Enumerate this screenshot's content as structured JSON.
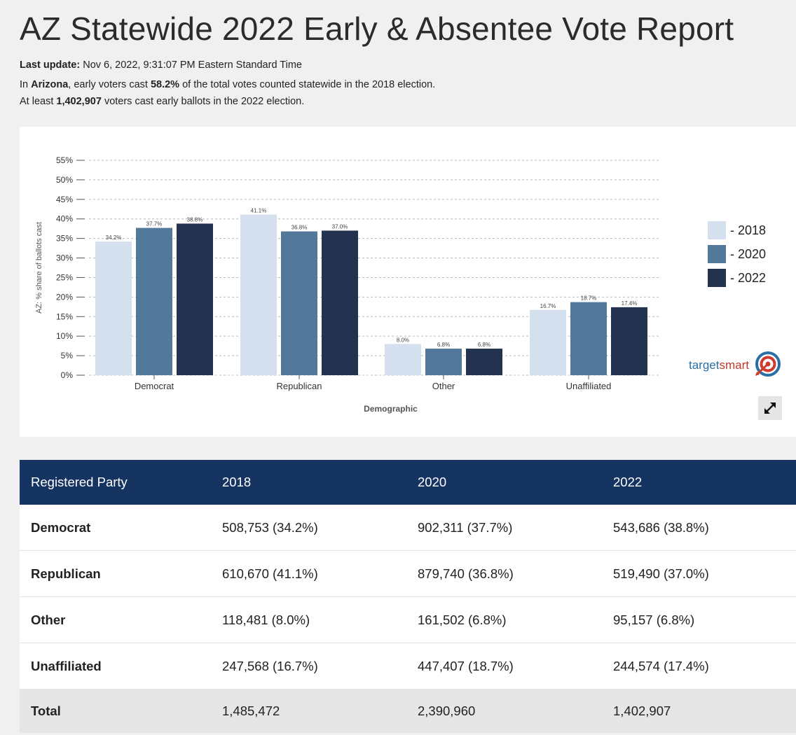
{
  "page": {
    "title": "AZ Statewide 2022 Early & Absentee Vote Report",
    "last_update_label": "Last update:",
    "last_update_value": "Nov 6, 2022, 9:31:07 PM Eastern Standard Time",
    "line2_prefix": "In",
    "line2_state": "Arizona",
    "line2_mid": ", early voters cast",
    "line2_pct": "58.2%",
    "line2_suffix": "of the total votes counted statewide in the 2018 election.",
    "line3_prefix": "At least",
    "line3_count": "1,402,907",
    "line3_suffix": "voters cast early ballots in the 2022 election."
  },
  "chart_data": {
    "type": "bar",
    "categories": [
      "Democrat",
      "Republican",
      "Other",
      "Unaffiliated"
    ],
    "series": [
      {
        "name": "2018",
        "color": "#d4e0ee",
        "values": [
          34.2,
          41.1,
          8.0,
          16.7
        ]
      },
      {
        "name": "2020",
        "color": "#52789a",
        "values": [
          37.7,
          36.8,
          6.8,
          18.7
        ]
      },
      {
        "name": "2022",
        "color": "#23334f",
        "values": [
          38.8,
          37.0,
          6.8,
          17.4
        ]
      }
    ],
    "data_labels": [
      [
        "34.2%",
        "41.1%",
        "8.0%",
        "16.7%"
      ],
      [
        "37.7%",
        "36.8%",
        "6.8%",
        "18.7%"
      ],
      [
        "38.8%",
        "37.0%",
        "6.8%",
        "17.4%"
      ]
    ],
    "yticks": [
      "0%",
      "5%",
      "10%",
      "15%",
      "20%",
      "25%",
      "30%",
      "35%",
      "40%",
      "45%",
      "50%",
      "55%"
    ],
    "ylim": [
      0,
      55
    ],
    "xlabel": "Demographic",
    "ylabel": "AZ: % share of ballots cast",
    "grid": true,
    "legend_position": "right",
    "legend_labels": [
      "- 2018",
      "- 2020",
      "- 2022"
    ]
  },
  "brand": {
    "name_part1": "target",
    "name_part2": "smart"
  },
  "table": {
    "headers": [
      "Registered Party",
      "2018",
      "2020",
      "2022"
    ],
    "rows": [
      {
        "party": "Democrat",
        "y2018": "508,753 (34.2%)",
        "y2020": "902,311 (37.7%)",
        "y2022": "543,686 (38.8%)"
      },
      {
        "party": "Republican",
        "y2018": "610,670 (41.1%)",
        "y2020": "879,740 (36.8%)",
        "y2022": "519,490 (37.0%)"
      },
      {
        "party": "Other",
        "y2018": "118,481 (8.0%)",
        "y2020": "161,502 (6.8%)",
        "y2022": "95,157 (6.8%)"
      },
      {
        "party": "Unaffiliated",
        "y2018": "247,568 (16.7%)",
        "y2020": "447,407 (18.7%)",
        "y2022": "244,574 (17.4%)"
      }
    ],
    "total": {
      "party": "Total",
      "y2018": "1,485,472",
      "y2020": "2,390,960",
      "y2022": "1,402,907"
    }
  }
}
